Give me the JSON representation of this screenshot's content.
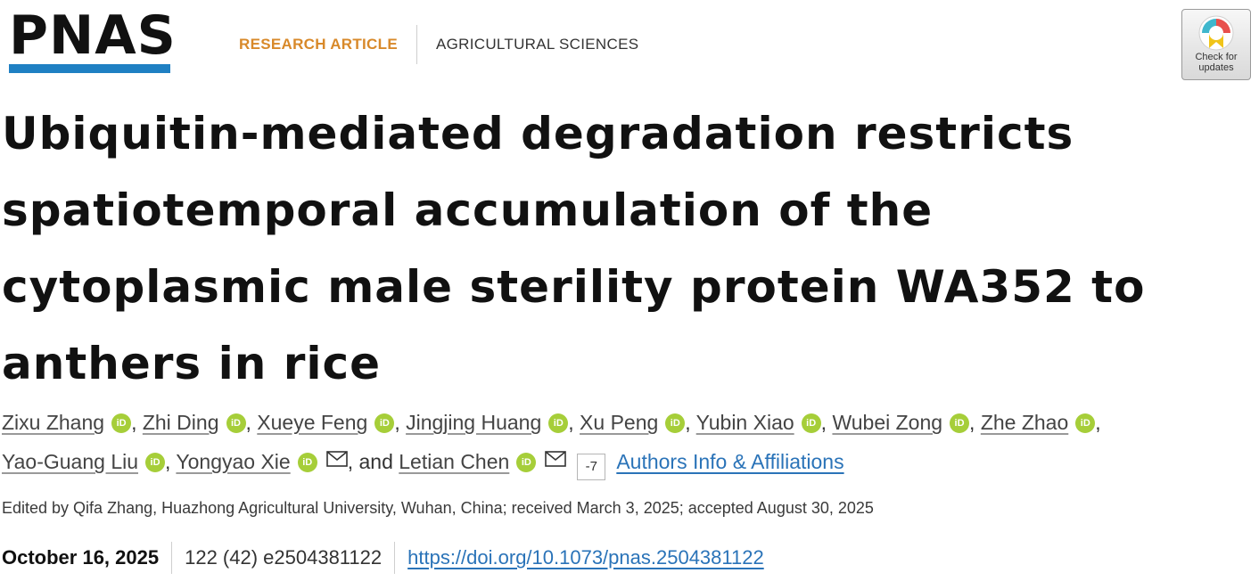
{
  "header": {
    "logo": "PNAS",
    "article_type": "RESEARCH ARTICLE",
    "subject": "AGRICULTURAL SCIENCES",
    "check_updates": {
      "line1": "Check for",
      "line2": "updates"
    }
  },
  "title": "Ubiquitin-mediated degradation restricts spatiotemporal accumulation of the cytoplasmic male sterility protein WA352 to anthers in rice",
  "authors": [
    "Zixu Zhang",
    "Zhi Ding",
    "Xueye Feng",
    "Jingjing Huang",
    "Xu Peng",
    "Yubin Xiao",
    "Wubei Zong",
    "Zhe Zhao",
    "Yao-Guang Liu",
    "Yongyao Xie",
    "Letian Chen"
  ],
  "orcid_label": "iD",
  "and_text": ", and",
  "more_authors_count": "-7",
  "affiliations_link": "Authors Info & Affiliations",
  "edited_by": "Edited by Qifa Zhang, Huazhong Agricultural University, Wuhan, China; received March 3, 2025; accepted August 30, 2025",
  "publication": {
    "date": "October 16, 2025",
    "volume": "122 (42) e2504381122",
    "doi": "https://doi.org/10.1073/pnas.2504381122"
  },
  "colors": {
    "logo_bar": "#1f80c3",
    "article_type": "#d8892a",
    "orcid": "#a6ce39",
    "link": "#2a73b8"
  }
}
